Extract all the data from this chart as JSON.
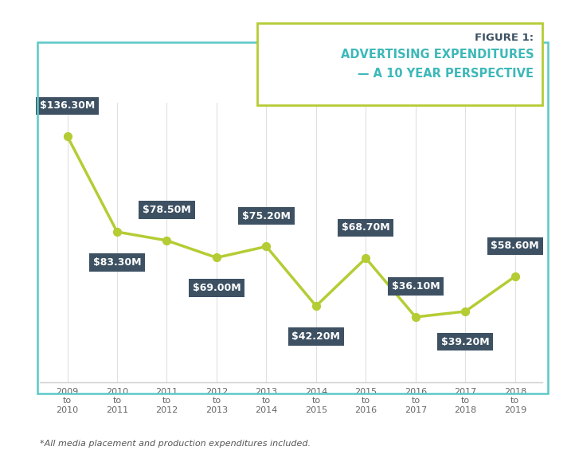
{
  "x_labels": [
    "2009\nto\n2010",
    "2010\nto\n2011",
    "2011\nto\n2012",
    "2012\nto\n2013",
    "2013\nto\n2014",
    "2014\nto\n2015",
    "2015\nto\n2016",
    "2016\nto\n2017",
    "2017\nto\n2018",
    "2018\nto\n2019"
  ],
  "values": [
    136.3,
    83.3,
    78.5,
    69.0,
    75.2,
    42.2,
    68.7,
    36.1,
    39.2,
    58.6
  ],
  "labels": [
    "$136.30M",
    "$83.30M",
    "$78.50M",
    "$69.00M",
    "$75.20M",
    "$42.20M",
    "$68.70M",
    "$36.10M",
    "$39.20M",
    "$58.60M"
  ],
  "label_offsets_x": [
    0,
    0,
    0,
    0,
    0,
    0,
    0,
    0,
    0,
    0
  ],
  "label_offsets_y": [
    14,
    -14,
    14,
    -14,
    14,
    -14,
    14,
    14,
    -14,
    14
  ],
  "label_va": [
    "bottom",
    "top",
    "bottom",
    "top",
    "bottom",
    "top",
    "bottom",
    "bottom",
    "top",
    "bottom"
  ],
  "line_color": "#b5cc34",
  "marker_color": "#b5cc34",
  "label_box_color": "#3d5163",
  "label_text_color": "#ffffff",
  "figure_bg": "#ffffff",
  "plot_bg": "#ffffff",
  "chart_border_color": "#5bc8c8",
  "title_border_color": "#b5cc34",
  "title_line1": "FIGURE 1:",
  "title_line2": "ADVERTISING EXPENDITURES",
  "title_line3": "— A 10 YEAR PERSPECTIVE",
  "title_color1": "#3d5163",
  "title_color2": "#3db8b8",
  "footnote": "*All media placement and production expenditures included.",
  "ylim": [
    0,
    155
  ],
  "label_fontsize": 9.0,
  "tick_fontsize": 8.0,
  "title_fontsize1": 9.5,
  "title_fontsize2": 10.5
}
